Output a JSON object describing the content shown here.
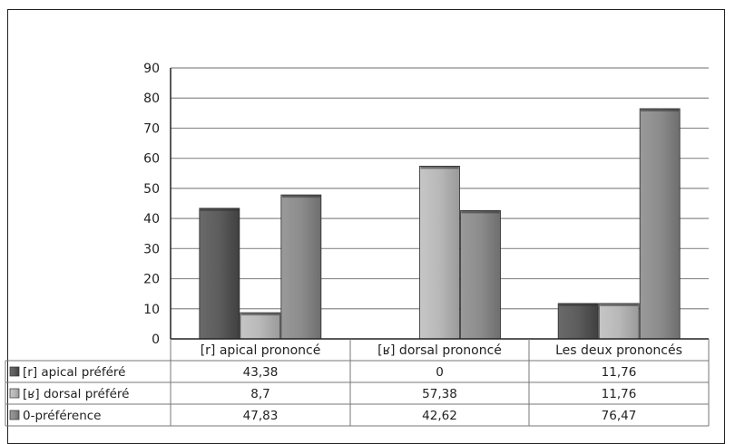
{
  "chart_data": {
    "type": "bar",
    "categories": [
      "[r] apical prononcé",
      "[ʁ] dorsal prononcé",
      "Les deux prononcés"
    ],
    "series": [
      {
        "name": "[r] apical préféré",
        "values": [
          43.38,
          0,
          11.76
        ],
        "display": [
          "43,38",
          "0",
          "11,76"
        ],
        "color": "#5a5a5a"
      },
      {
        "name": "[ʁ] dorsal préféré",
        "values": [
          8.7,
          57.38,
          11.76
        ],
        "display": [
          "8,7",
          "57,38",
          "11,76"
        ],
        "color": "#b4b4b4"
      },
      {
        "name": "0-préférence",
        "values": [
          47.83,
          42.62,
          76.47
        ],
        "display": [
          "47,83",
          "42,62",
          "76,47"
        ],
        "color": "#8a8a8a"
      }
    ],
    "ylim": [
      0,
      90
    ],
    "yticks": [
      0,
      10,
      20,
      30,
      40,
      50,
      60,
      70,
      80,
      90
    ],
    "grid": true,
    "legend": "data-table"
  }
}
